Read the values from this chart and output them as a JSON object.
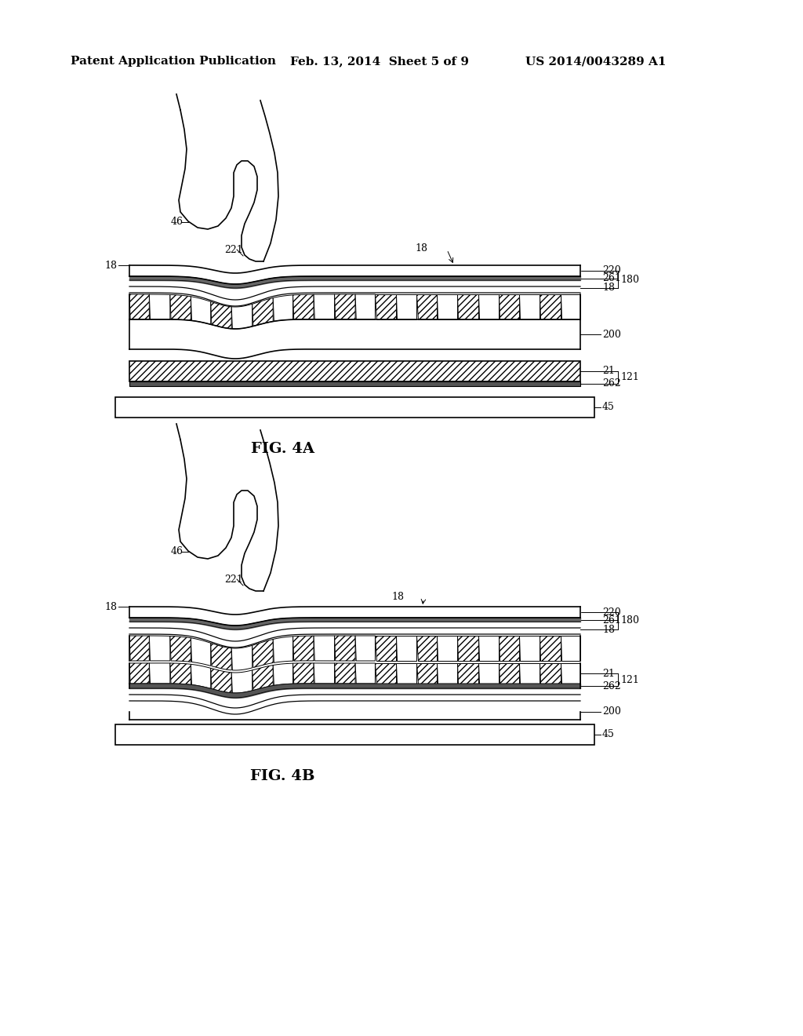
{
  "bg_color": "#ffffff",
  "header_left": "Patent Application Publication",
  "header_mid": "Feb. 13, 2014  Sheet 5 of 9",
  "header_right": "US 2014/0043289 A1",
  "fig4a_label": "FIG. 4A",
  "fig4b_label": "FIG. 4B",
  "line_color": "#000000",
  "hatch_pattern": "////"
}
